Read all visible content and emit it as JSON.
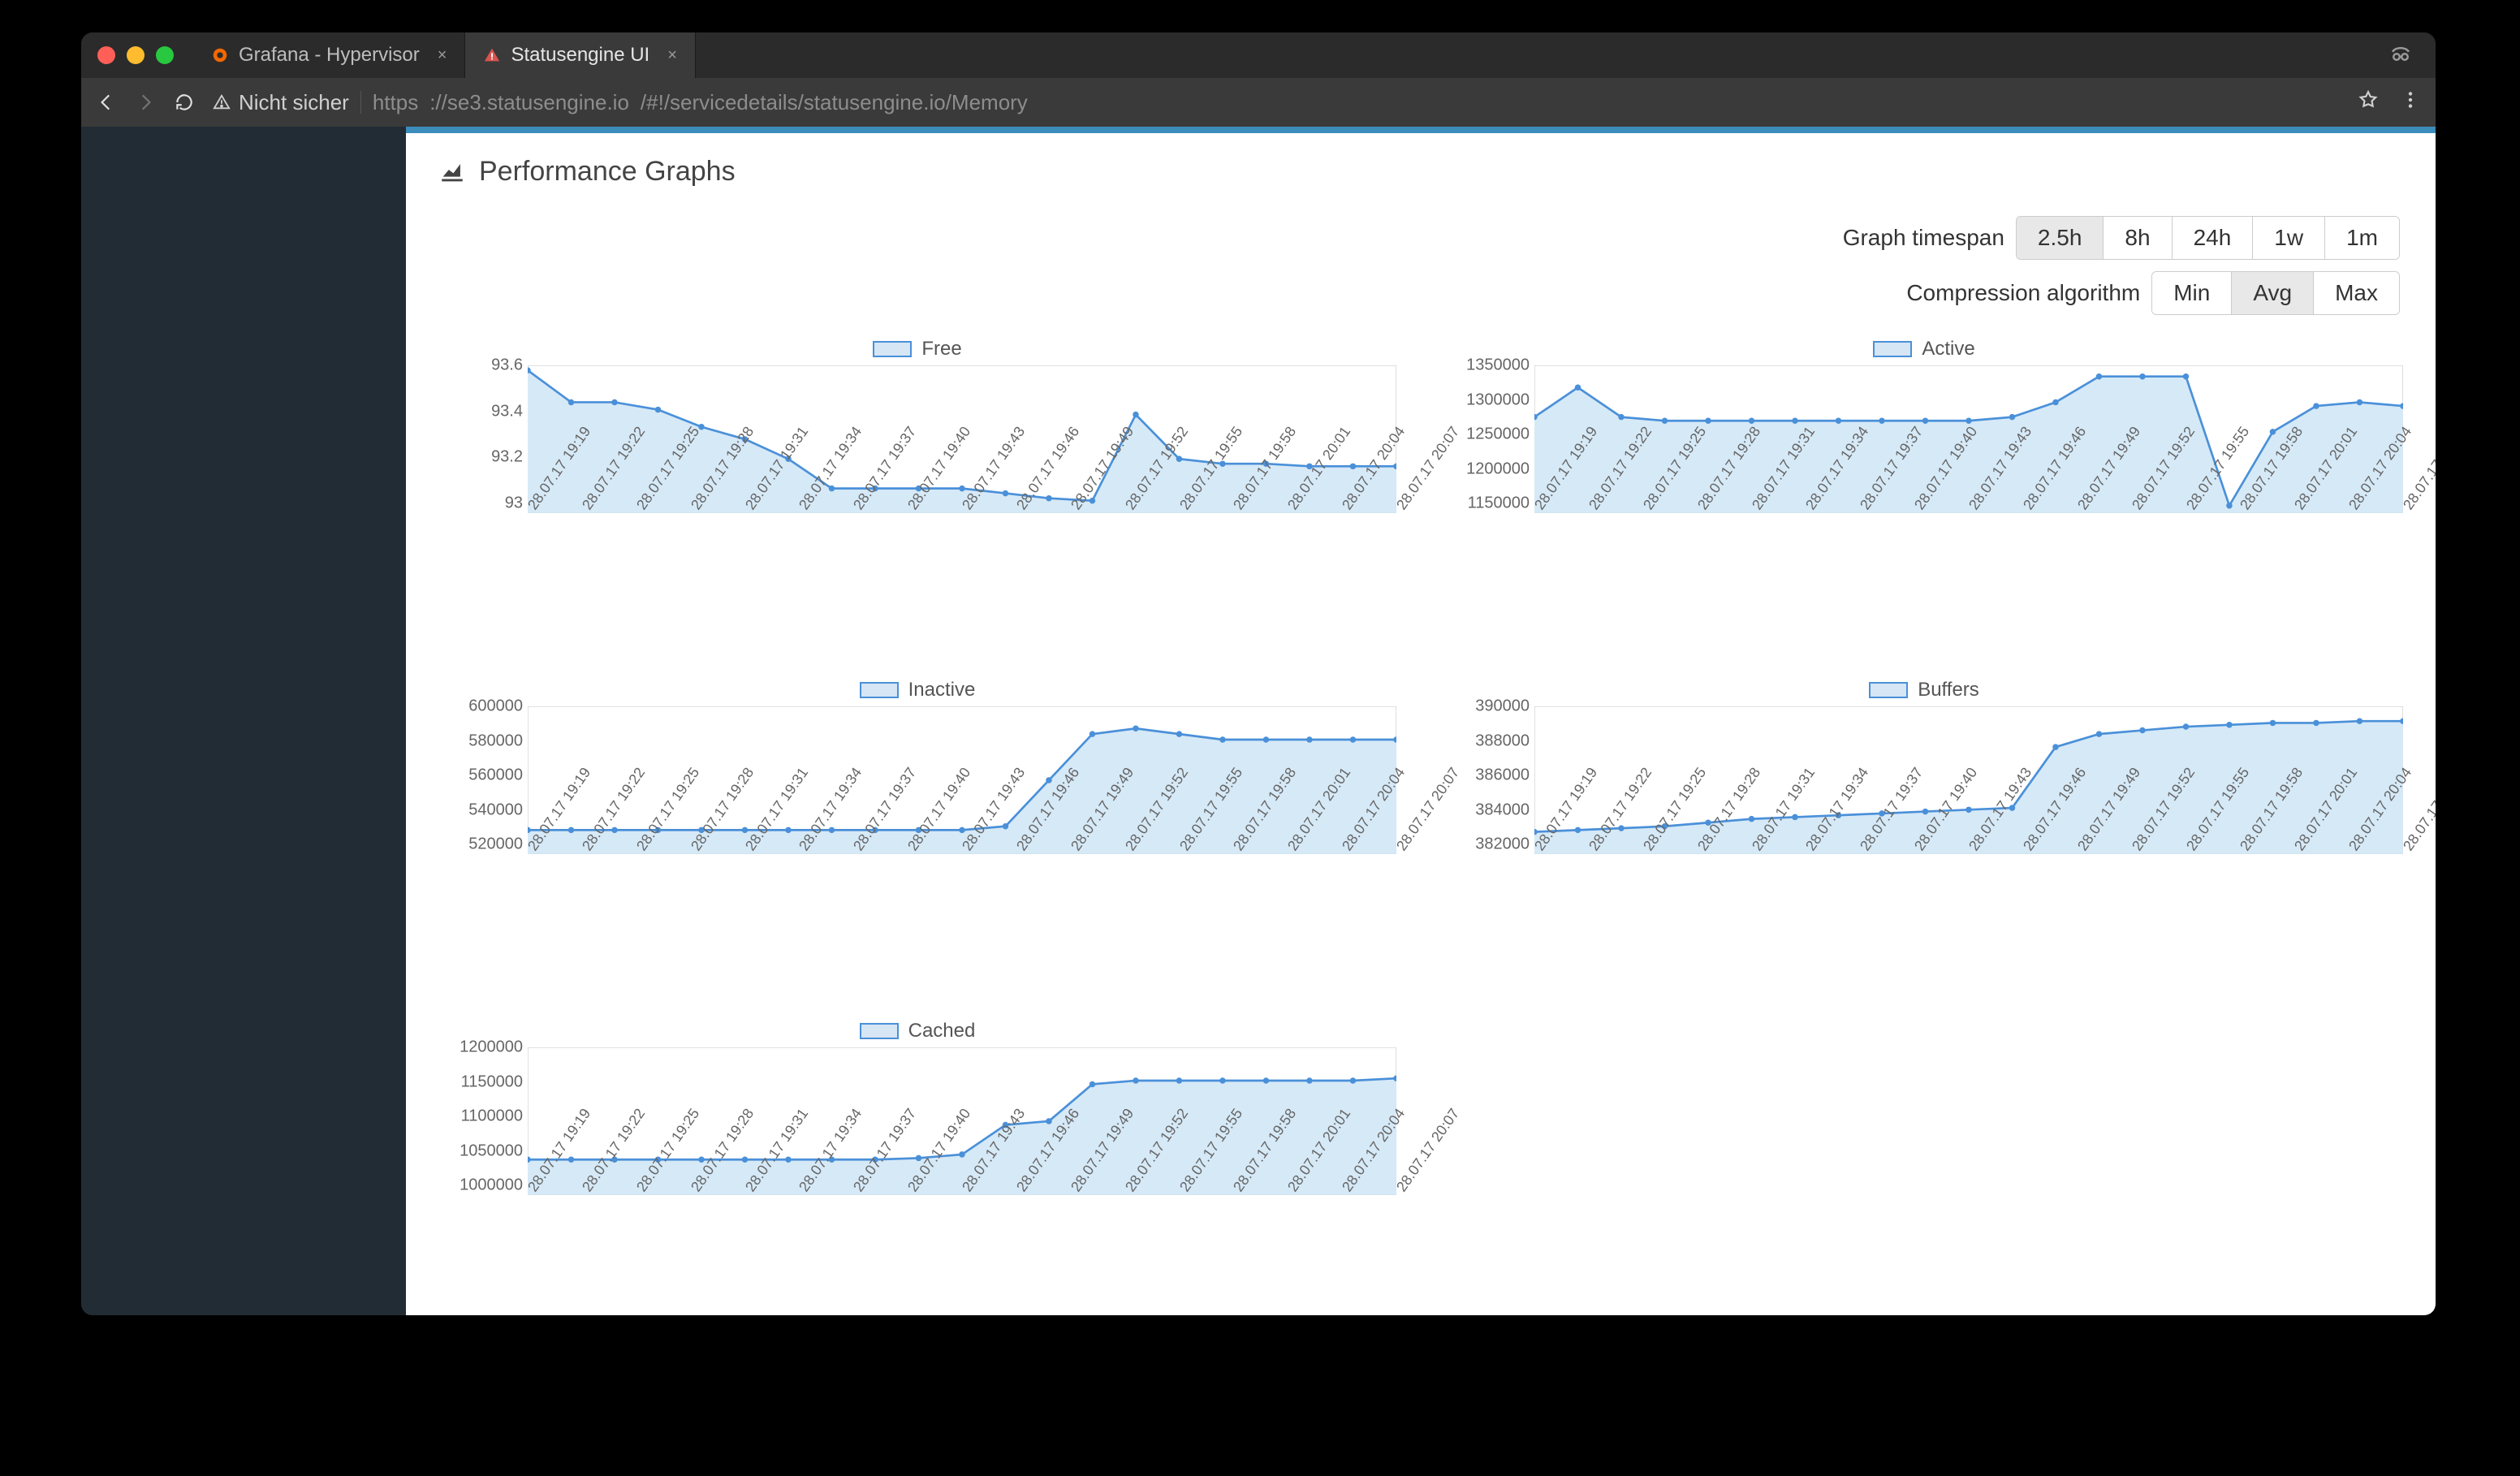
{
  "browser": {
    "tabs": [
      {
        "title": "Grafana - Hypervisor",
        "active": false,
        "favicon": "grafana"
      },
      {
        "title": "Statusengine UI",
        "active": true,
        "favicon": "warning"
      }
    ],
    "security_label": "Nicht sicher",
    "url_scheme": "https",
    "url_host": "://se3.statusengine.io",
    "url_path": "/#!/servicedetails/statusengine.io/Memory"
  },
  "page": {
    "title": "Performance Graphs",
    "timespan_label": "Graph timespan",
    "compression_label": "Compression algorithm",
    "timespan_options": [
      "2.5h",
      "8h",
      "24h",
      "1w",
      "1m"
    ],
    "timespan_active": "2.5h",
    "compression_options": [
      "Min",
      "Avg",
      "Max"
    ],
    "compression_active": "Avg",
    "accent_color": "#3c8dbc",
    "chart_line_color": "#4a90d9",
    "chart_fill_color": "#d6e9f7",
    "chart_border_color": "#c7c7c7",
    "background_color": "#ffffff",
    "sidebar_color": "#222c35"
  },
  "x_categories": [
    "28.07.17 19:19",
    "28.07.17 19:22",
    "28.07.17 19:25",
    "28.07.17 19:28",
    "28.07.17 19:31",
    "28.07.17 19:34",
    "28.07.17 19:37",
    "28.07.17 19:40",
    "28.07.17 19:43",
    "28.07.17 19:46",
    "28.07.17 19:49",
    "28.07.17 19:52",
    "28.07.17 19:55",
    "28.07.17 19:58",
    "28.07.17 20:01",
    "28.07.17 20:04",
    "28.07.17 20:07"
  ],
  "charts": [
    {
      "name": "Free",
      "type": "area",
      "ylim": [
        93.0,
        93.6
      ],
      "yticks": [
        93.0,
        93.2,
        93.4,
        93.6
      ],
      "values": [
        93.58,
        93.45,
        93.45,
        93.42,
        93.35,
        93.3,
        93.22,
        93.1,
        93.1,
        93.1,
        93.1,
        93.08,
        93.06,
        93.05,
        93.4,
        93.22,
        93.2,
        93.2,
        93.19,
        93.19,
        93.19
      ]
    },
    {
      "name": "Active",
      "type": "area",
      "ylim": [
        1150000,
        1350000
      ],
      "yticks": [
        1150000,
        1200000,
        1250000,
        1300000,
        1350000
      ],
      "values": [
        1280000,
        1320000,
        1280000,
        1275000,
        1275000,
        1275000,
        1275000,
        1275000,
        1275000,
        1275000,
        1275000,
        1280000,
        1300000,
        1335000,
        1335000,
        1335000,
        1160000,
        1260000,
        1295000,
        1300000,
        1295000
      ]
    },
    {
      "name": "Inactive",
      "type": "area",
      "ylim": [
        520000,
        600000
      ],
      "yticks": [
        520000,
        540000,
        560000,
        580000,
        600000
      ],
      "values": [
        533000,
        533000,
        533000,
        533000,
        533000,
        533000,
        533000,
        533000,
        533000,
        533000,
        533000,
        535000,
        560000,
        585000,
        588000,
        585000,
        582000,
        582000,
        582000,
        582000,
        582000
      ]
    },
    {
      "name": "Buffers",
      "type": "area",
      "ylim": [
        382000,
        390000
      ],
      "yticks": [
        382000,
        384000,
        386000,
        388000,
        390000
      ],
      "values": [
        383200,
        383300,
        383400,
        383500,
        383700,
        383900,
        384000,
        384100,
        384200,
        384300,
        384400,
        384500,
        387800,
        388500,
        388700,
        388900,
        389000,
        389100,
        389100,
        389200,
        389200
      ]
    },
    {
      "name": "Cached",
      "type": "area",
      "ylim": [
        1000000,
        1200000
      ],
      "yticks": [
        1000000,
        1050000,
        1100000,
        1150000,
        1200000
      ],
      "values": [
        1048000,
        1048000,
        1048000,
        1048000,
        1048000,
        1048000,
        1048000,
        1048000,
        1048000,
        1050000,
        1055000,
        1095000,
        1100000,
        1150000,
        1155000,
        1155000,
        1155000,
        1155000,
        1155000,
        1155000,
        1158000
      ]
    }
  ]
}
